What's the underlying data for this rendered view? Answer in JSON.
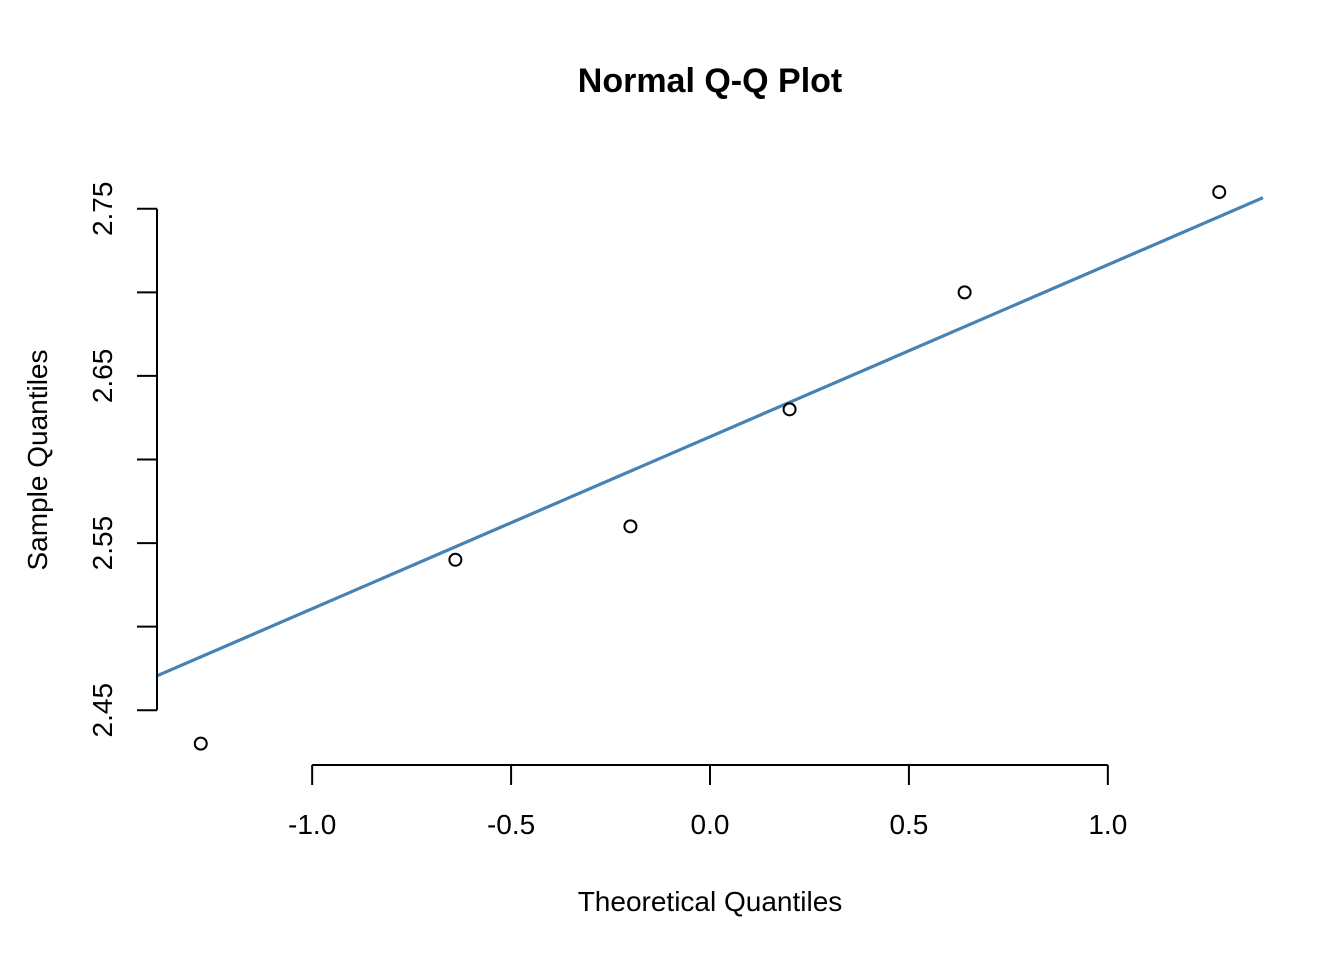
{
  "chart_data": {
    "type": "scatter",
    "title": "Normal Q-Q Plot",
    "xlabel": "Theoretical Quantiles",
    "ylabel": "Sample Quantiles",
    "xlim": [
      -1.39,
      1.39
    ],
    "ylim": [
      2.422,
      2.778
    ],
    "x_ticks": [
      -1.0,
      -0.5,
      0.0,
      0.5,
      1.0
    ],
    "x_tick_labels": [
      "-1.0",
      "-0.5",
      "0.0",
      "0.5",
      "1.0"
    ],
    "y_ticks": [
      2.45,
      2.5,
      2.55,
      2.6,
      2.65,
      2.7,
      2.75
    ],
    "y_tick_labels": [
      "2.45",
      "",
      "2.55",
      "",
      "2.65",
      "",
      "2.75"
    ],
    "points": [
      {
        "x": -1.28,
        "y": 2.43
      },
      {
        "x": -0.64,
        "y": 2.54
      },
      {
        "x": -0.2,
        "y": 2.56
      },
      {
        "x": 0.2,
        "y": 2.63
      },
      {
        "x": 0.64,
        "y": 2.7
      },
      {
        "x": 1.28,
        "y": 2.76
      }
    ],
    "reference_line": {
      "intercept": 2.6136,
      "slope": 0.1029,
      "color": "#4682b4"
    },
    "point_color": "#000000",
    "grid": false,
    "legend": "none"
  }
}
